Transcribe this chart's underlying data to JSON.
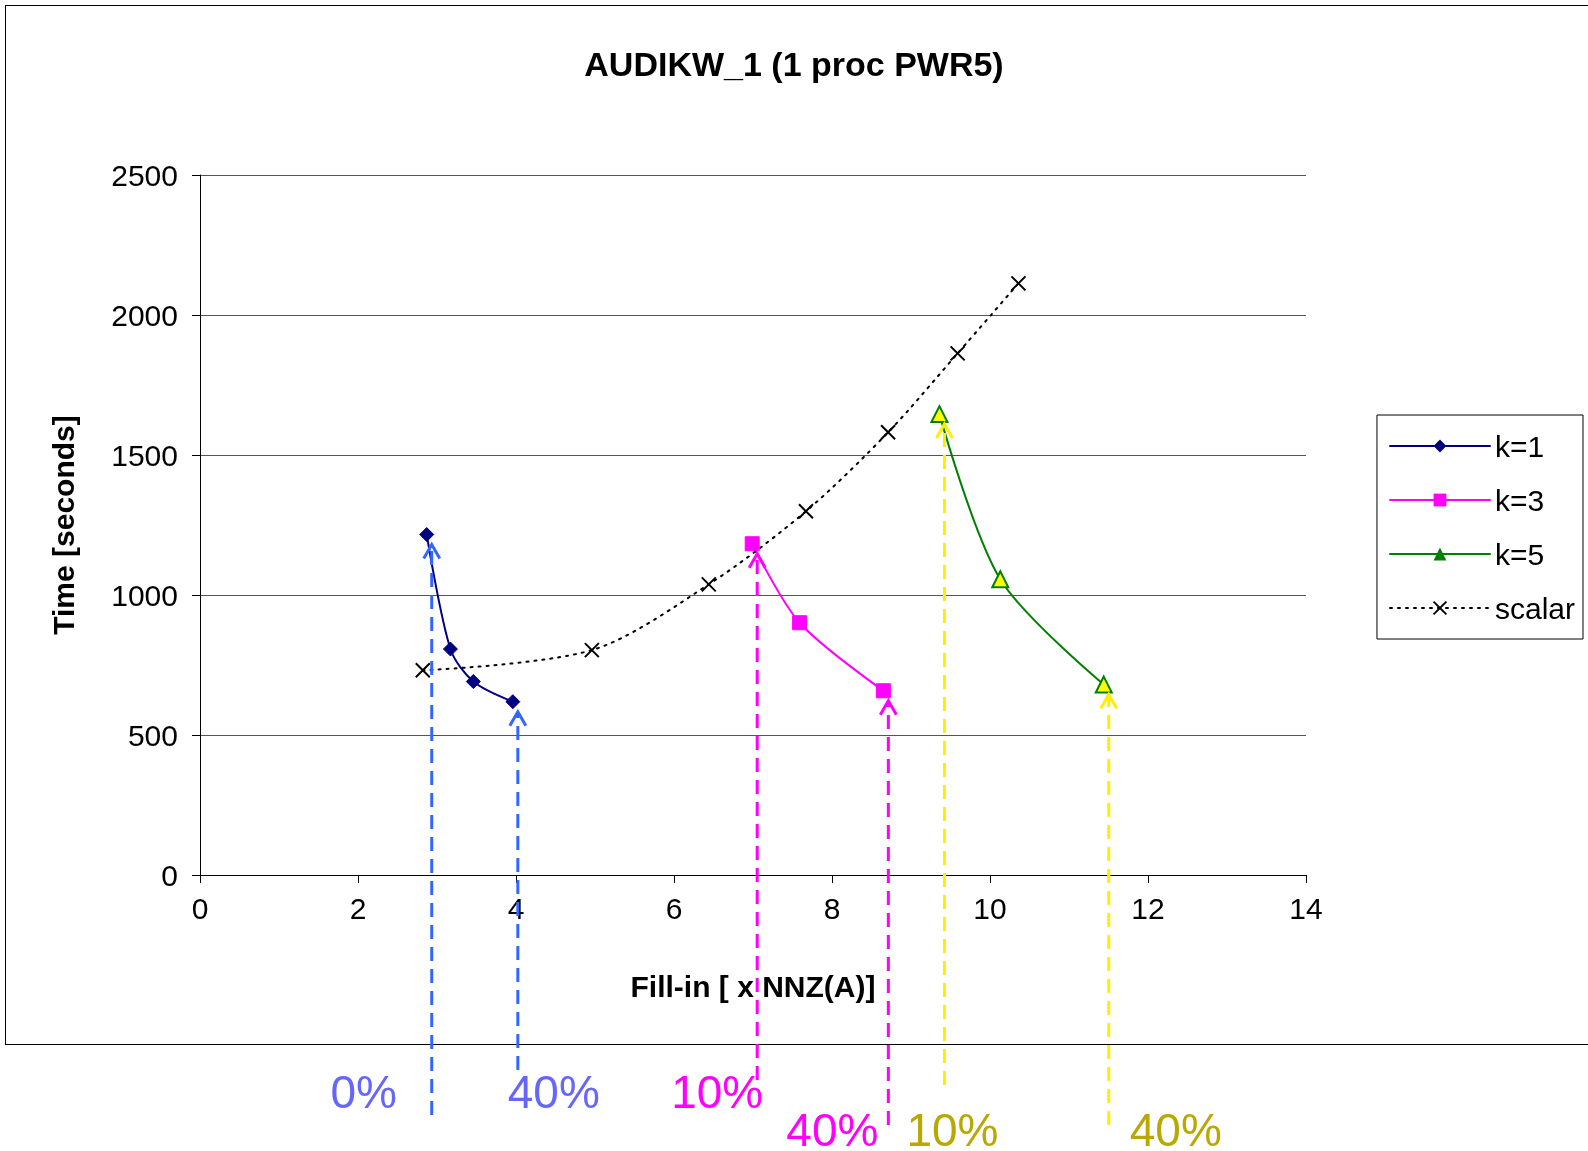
{
  "chart_data": {
    "type": "line",
    "title": "AUDIKW_1 (1 proc PWR5)",
    "xlabel": "Fill-in [ x NNZ(A)]",
    "ylabel": "Time [seconds]",
    "xlim": [
      0,
      14
    ],
    "xticks": [
      0,
      2,
      4,
      6,
      8,
      10,
      12,
      14
    ],
    "ylim": [
      0,
      2500
    ],
    "yticks": [
      0,
      500,
      1000,
      1500,
      2000,
      2500
    ],
    "grid": "y",
    "legend": "right",
    "series": [
      {
        "name": "k=1",
        "color": "#000080",
        "marker": "diamond",
        "line_style": "solid",
        "x": [
          2.87,
          3.17,
          3.46,
          3.96
        ],
        "values": [
          1216,
          807,
          691,
          619
        ]
      },
      {
        "name": "k=3",
        "color": "#ff00ff",
        "marker": "square",
        "line_style": "solid",
        "x": [
          6.99,
          7.59,
          8.65
        ],
        "values": [
          1183,
          901,
          658
        ]
      },
      {
        "name": "k=5",
        "color": "#008000",
        "colors": [
          "#ffff00",
          "#ffff00",
          "#ffff00"
        ],
        "marker": "triangle",
        "line_style": "solid",
        "x": [
          9.36,
          10.13,
          11.44
        ],
        "values": [
          1646,
          1056,
          680
        ]
      },
      {
        "name": "scalar",
        "color": "#000000",
        "marker": "cross",
        "line_style": "dotted",
        "x": [
          2.82,
          4.96,
          6.44,
          7.67,
          8.71,
          9.59,
          10.36
        ],
        "values": [
          731,
          803,
          1038,
          1299,
          1581,
          1863,
          2113
        ]
      }
    ],
    "annotations": [
      "0%",
      "40%",
      "10%",
      "40%",
      "10%",
      "40%"
    ]
  }
}
